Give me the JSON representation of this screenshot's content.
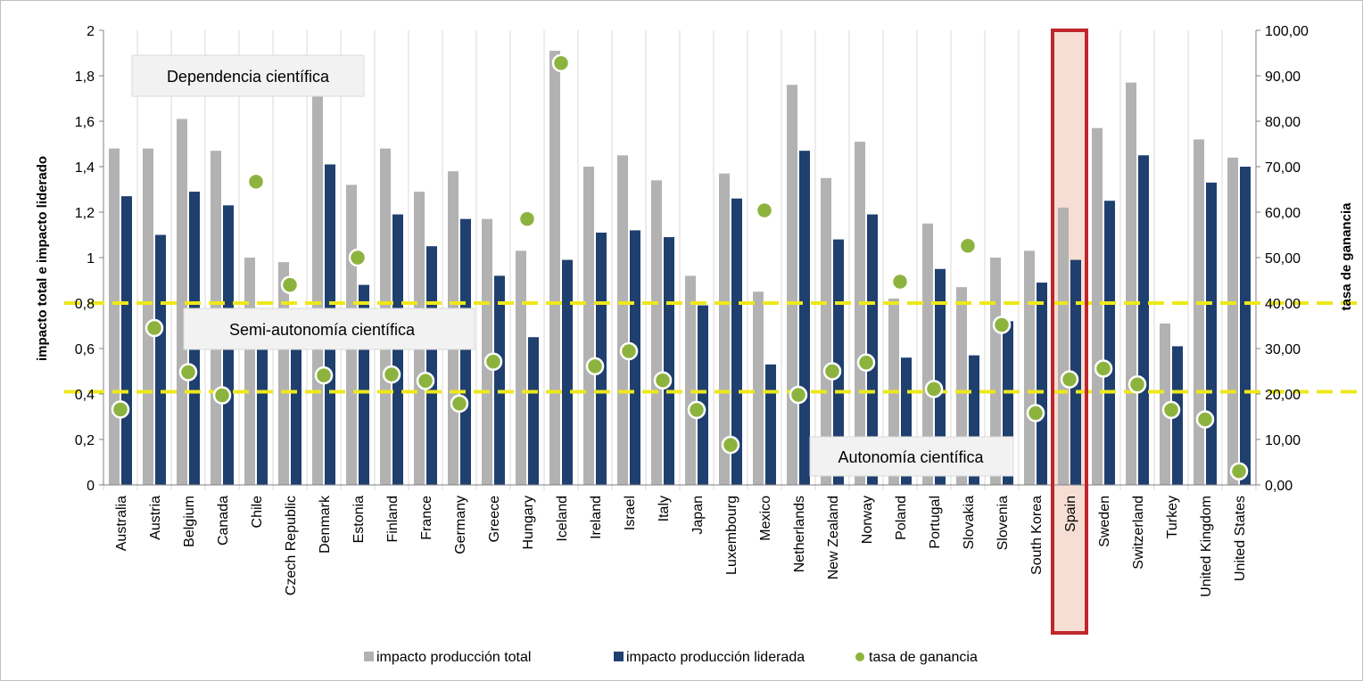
{
  "chart_data": {
    "type": "bar",
    "categories": [
      "Australia",
      "Austria",
      "Belgium",
      "Canada",
      "Chile",
      "Czech Republic",
      "Denmark",
      "Estonia",
      "Finland",
      "France",
      "Germany",
      "Greece",
      "Hungary",
      "Iceland",
      "Ireland",
      "Israel",
      "Italy",
      "Japan",
      "Luxembourg",
      "Mexico",
      "Netherlands",
      "New Zealand",
      "Norway",
      "Poland",
      "Portugal",
      "Slovakia",
      "Slovenia",
      "South Korea",
      "Spain",
      "Sweden",
      "Switzerland",
      "Turkey",
      "United Kingdom",
      "United States"
    ],
    "series": [
      {
        "name": "impacto producción total",
        "axis": "left",
        "kind": "bar",
        "color": "#b2b2b2",
        "values": [
          1.48,
          1.48,
          1.61,
          1.47,
          1.0,
          0.98,
          1.72,
          1.32,
          1.48,
          1.29,
          1.38,
          1.17,
          1.03,
          1.91,
          1.4,
          1.45,
          1.34,
          0.92,
          1.37,
          0.85,
          1.76,
          1.35,
          1.51,
          0.82,
          1.15,
          0.87,
          1.0,
          1.03,
          1.22,
          1.57,
          1.77,
          0.71,
          1.52,
          1.44
        ]
      },
      {
        "name": "impacto producción liderada",
        "axis": "left",
        "kind": "bar",
        "color": "#1f3f6f",
        "values": [
          1.27,
          1.1,
          1.29,
          1.23,
          0.61,
          0.62,
          1.41,
          0.88,
          1.19,
          1.05,
          1.17,
          0.92,
          0.65,
          0.99,
          1.11,
          1.12,
          1.09,
          0.79,
          1.26,
          0.53,
          1.47,
          1.08,
          1.19,
          0.56,
          0.95,
          0.57,
          0.72,
          0.89,
          0.99,
          1.25,
          1.45,
          0.61,
          1.33,
          1.4
        ]
      },
      {
        "name": "tasa de ganancia",
        "axis": "right",
        "kind": "scatter",
        "color": "#8db33f",
        "values": [
          16.6,
          34.5,
          24.8,
          19.7,
          66.7,
          44.0,
          24.1,
          50.0,
          24.3,
          22.9,
          17.9,
          27.1,
          58.5,
          92.8,
          26.1,
          29.4,
          23.0,
          16.5,
          8.8,
          60.4,
          19.8,
          25.0,
          26.9,
          44.7,
          21.1,
          52.6,
          35.2,
          15.8,
          23.2,
          25.6,
          22.1,
          16.5,
          14.4,
          3.0
        ]
      }
    ],
    "xlabel": "",
    "ylabel": "impacto total e impacto liderado",
    "ylabel_right": "tasa de ganancia",
    "ylim": [
      0,
      2
    ],
    "ylim_right": [
      0,
      100
    ],
    "yticks": [
      "0",
      "0,2",
      "0,4",
      "0,6",
      "0,8",
      "1",
      "1,2",
      "1,4",
      "1,6",
      "1,8",
      "2"
    ],
    "yticks_right": [
      "0,00",
      "10,00",
      "20,00",
      "30,00",
      "40,00",
      "50,00",
      "60,00",
      "70,00",
      "80,00",
      "90,00",
      "100,00"
    ],
    "reference_lines": [
      {
        "axis": "right",
        "value": 40,
        "style": "dashed",
        "color": "#eee81c"
      },
      {
        "axis": "right",
        "value": 20.5,
        "style": "dashed",
        "color": "#eee81c"
      }
    ],
    "annotations": [
      "Dependencia científica",
      "Semi-autonomía científica",
      "Autonomía científica"
    ],
    "highlight": {
      "category": "Spain",
      "border": "#c0262c",
      "fill": "#f5d8cc"
    },
    "legend_position": "bottom",
    "grid": "vertical"
  }
}
